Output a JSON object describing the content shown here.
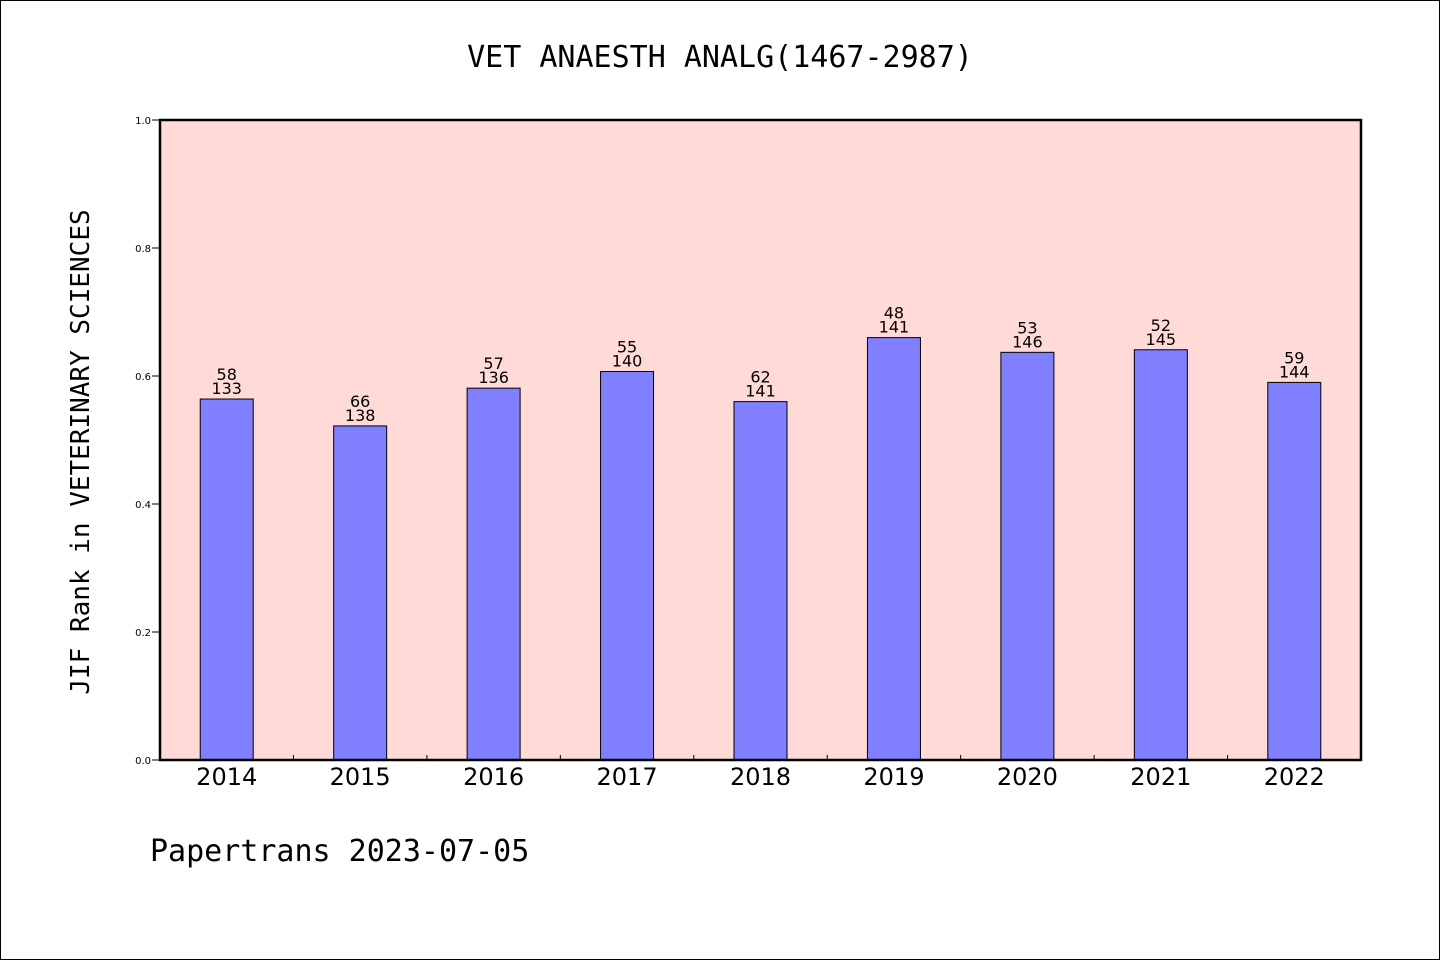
{
  "chart_data": {
    "type": "bar",
    "title": "VET ANAESTH ANALG(1467-2987)",
    "xlabel": "",
    "ylabel": "JIF Rank in VETERINARY SCIENCES",
    "ylim": [
      0.0,
      1.0
    ],
    "yticks": [
      "0.0",
      "0.2",
      "0.4",
      "0.6",
      "0.8",
      "1.0"
    ],
    "categories": [
      "2014",
      "2015",
      "2016",
      "2017",
      "2018",
      "2019",
      "2020",
      "2021",
      "2022"
    ],
    "values": [
      0.564,
      0.522,
      0.581,
      0.607,
      0.56,
      0.66,
      0.637,
      0.641,
      0.59
    ],
    "labels": [
      {
        "rank": "58",
        "total": "133"
      },
      {
        "rank": "66",
        "total": "138"
      },
      {
        "rank": "57",
        "total": "136"
      },
      {
        "rank": "55",
        "total": "140"
      },
      {
        "rank": "62",
        "total": "141"
      },
      {
        "rank": "48",
        "total": "141"
      },
      {
        "rank": "53",
        "total": "146"
      },
      {
        "rank": "52",
        "total": "145"
      },
      {
        "rank": "59",
        "total": "144"
      }
    ],
    "grid": false,
    "colors": {
      "plot_background": "#FFDAD7",
      "bar_fill": "#8080FF",
      "bar_stroke": "#000000",
      "axis": "#000000"
    }
  },
  "footer": {
    "text": "Papertrans 2023-07-05"
  }
}
